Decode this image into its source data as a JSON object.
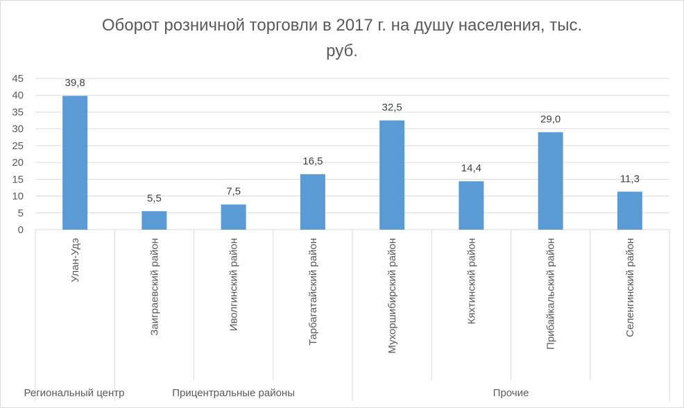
{
  "chart_data": {
    "type": "bar",
    "title": "Оборот розничной торговли в 2017 г. на душу населения, тыс. руб.",
    "title_lines": [
      "Оборот розничной торговли в 2017 г. на душу населения, тыс.",
      "руб."
    ],
    "categories": [
      "Улан-Удэ",
      "Заиграевский район",
      "Иволгинский район",
      "Тарбагатайский район",
      "Мухоршибирский район",
      "Кяхтинский район",
      "Прибайкальский район",
      "Селенгинский район"
    ],
    "values": [
      39.8,
      5.5,
      7.5,
      16.5,
      32.5,
      14.4,
      29.0,
      11.3
    ],
    "data_labels": [
      "39,8",
      "5,5",
      "7,5",
      "16,5",
      "32,5",
      "14,4",
      "29,0",
      "11,3"
    ],
    "groups": [
      {
        "label": "Региональный центр",
        "count": 1
      },
      {
        "label": "Прицентральные районы",
        "count": 3
      },
      {
        "label": "Прочие",
        "count": 4
      }
    ],
    "ylim": [
      0,
      45
    ],
    "yticks": [
      0,
      5,
      10,
      15,
      20,
      25,
      30,
      35,
      40,
      45
    ],
    "grid": true,
    "legend": "none",
    "bar_color": "#5b9bd5",
    "grid_color": "#d9d9d9"
  }
}
